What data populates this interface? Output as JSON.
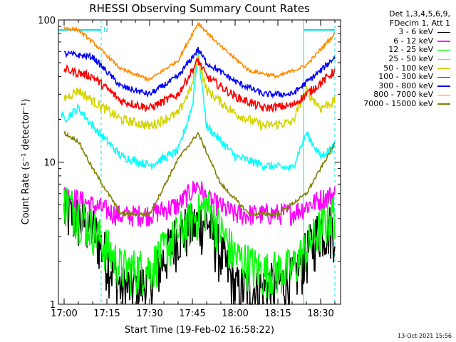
{
  "chart_data": {
    "type": "line",
    "title": "RHESSI Observing Summary Count Rates",
    "xlabel": "Start Time (19-Feb-02 16:58:22)",
    "ylabel": "Count Rate (s⁻¹ detector⁻¹)",
    "yscale": "log",
    "ylim": [
      1,
      100
    ],
    "xlim": [
      "16:58",
      "18:37"
    ],
    "x_ticks": [
      "17:00",
      "17:15",
      "17:30",
      "17:45",
      "18:00",
      "18:15",
      "18:30"
    ],
    "y_ticks": [
      "1",
      "10",
      "100"
    ],
    "night_intervals": [
      [
        "16:58",
        "17:13"
      ],
      [
        "18:24",
        "18:35"
      ]
    ],
    "saa_marker": "N",
    "legend_header": [
      "Det 1,3,4,5,6,9,",
      "FDecim 1, Att 1"
    ],
    "series": [
      {
        "name": "3 - 6 keV",
        "color": "#000000",
        "x": [
          "17:00",
          "17:10",
          "17:20",
          "17:30",
          "17:40",
          "17:50",
          "18:00",
          "18:10",
          "18:20",
          "18:30",
          "18:35"
        ],
        "y": [
          4.5,
          3.5,
          1.3,
          1.4,
          3.2,
          4.0,
          1.3,
          1.3,
          1.5,
          3.5,
          3.5
        ]
      },
      {
        "name": "6 - 12 keV",
        "color": "#ff00ff",
        "x": [
          "17:00",
          "17:10",
          "17:20",
          "17:30",
          "17:40",
          "17:47",
          "17:50",
          "18:00",
          "18:10",
          "18:20",
          "18:30",
          "18:35"
        ],
        "y": [
          6.0,
          5.0,
          4.2,
          4.3,
          5.0,
          7.0,
          5.5,
          4.3,
          4.3,
          4.4,
          5.5,
          6.0
        ]
      },
      {
        "name": "12 - 25 keV",
        "color": "#00ff00",
        "x": [
          "17:00",
          "17:10",
          "17:20",
          "17:30",
          "17:40",
          "17:50",
          "18:00",
          "18:10",
          "18:20",
          "18:30",
          "18:35"
        ],
        "y": [
          5.5,
          3.5,
          1.8,
          1.8,
          3.2,
          5.0,
          2.2,
          1.7,
          1.8,
          3.5,
          4.5
        ]
      },
      {
        "name": "25 - 50 keV",
        "color": "#00ffff",
        "x": [
          "16:59",
          "17:00",
          "17:05",
          "17:10",
          "17:20",
          "17:30",
          "17:40",
          "17:45",
          "17:47",
          "17:50",
          "18:00",
          "18:10",
          "18:20",
          "18:25",
          "18:30",
          "18:35"
        ],
        "y": [
          22,
          20,
          24,
          18,
          11,
          9.5,
          12,
          25,
          60,
          18,
          11,
          9.5,
          9.0,
          16,
          11,
          13
        ]
      },
      {
        "name": "50 - 100 keV",
        "color": "#d4d400",
        "x": [
          "17:00",
          "17:05",
          "17:10",
          "17:20",
          "17:30",
          "17:40",
          "17:45",
          "17:47",
          "17:50",
          "18:00",
          "18:10",
          "18:20",
          "18:25",
          "18:30",
          "18:35"
        ],
        "y": [
          28,
          32,
          27,
          20,
          18,
          22,
          35,
          55,
          32,
          22,
          18,
          19,
          32,
          24,
          27
        ]
      },
      {
        "name": "100 - 300 keV",
        "color": "#ff0000",
        "x": [
          "17:00",
          "17:10",
          "17:20",
          "17:30",
          "17:40",
          "17:47",
          "17:50",
          "18:00",
          "18:10",
          "18:20",
          "18:30",
          "18:35"
        ],
        "y": [
          45,
          40,
          27,
          24,
          30,
          52,
          40,
          29,
          24,
          25,
          36,
          44
        ]
      },
      {
        "name": "300 - 800 keV",
        "color": "#0000ff",
        "x": [
          "17:00",
          "17:10",
          "17:20",
          "17:30",
          "17:40",
          "17:47",
          "17:50",
          "18:00",
          "18:10",
          "18:20",
          "18:30",
          "18:35"
        ],
        "y": [
          58,
          55,
          34,
          30,
          40,
          62,
          50,
          37,
          30,
          30,
          44,
          55
        ]
      },
      {
        "name": "800 - 7000 keV",
        "color": "#ff8c00",
        "x": [
          "17:00",
          "17:05",
          "17:10",
          "17:20",
          "17:30",
          "17:40",
          "17:47",
          "17:55",
          "18:05",
          "18:15",
          "18:25",
          "18:30",
          "18:35"
        ],
        "y": [
          88,
          85,
          70,
          45,
          38,
          52,
          95,
          65,
          44,
          40,
          48,
          62,
          80
        ]
      },
      {
        "name": "7000 - 15000 keV",
        "color": "#808000",
        "x": [
          "17:00",
          "17:05",
          "17:10",
          "17:20",
          "17:30",
          "17:40",
          "17:47",
          "17:55",
          "18:05",
          "18:15",
          "18:25",
          "18:30",
          "18:35"
        ],
        "y": [
          16,
          14,
          9.0,
          4.3,
          4.3,
          10.5,
          16,
          7.0,
          4.3,
          4.3,
          6.0,
          9.0,
          13.5
        ]
      }
    ]
  },
  "footer": {
    "timestamp": "13-Oct-2021 15:56"
  }
}
